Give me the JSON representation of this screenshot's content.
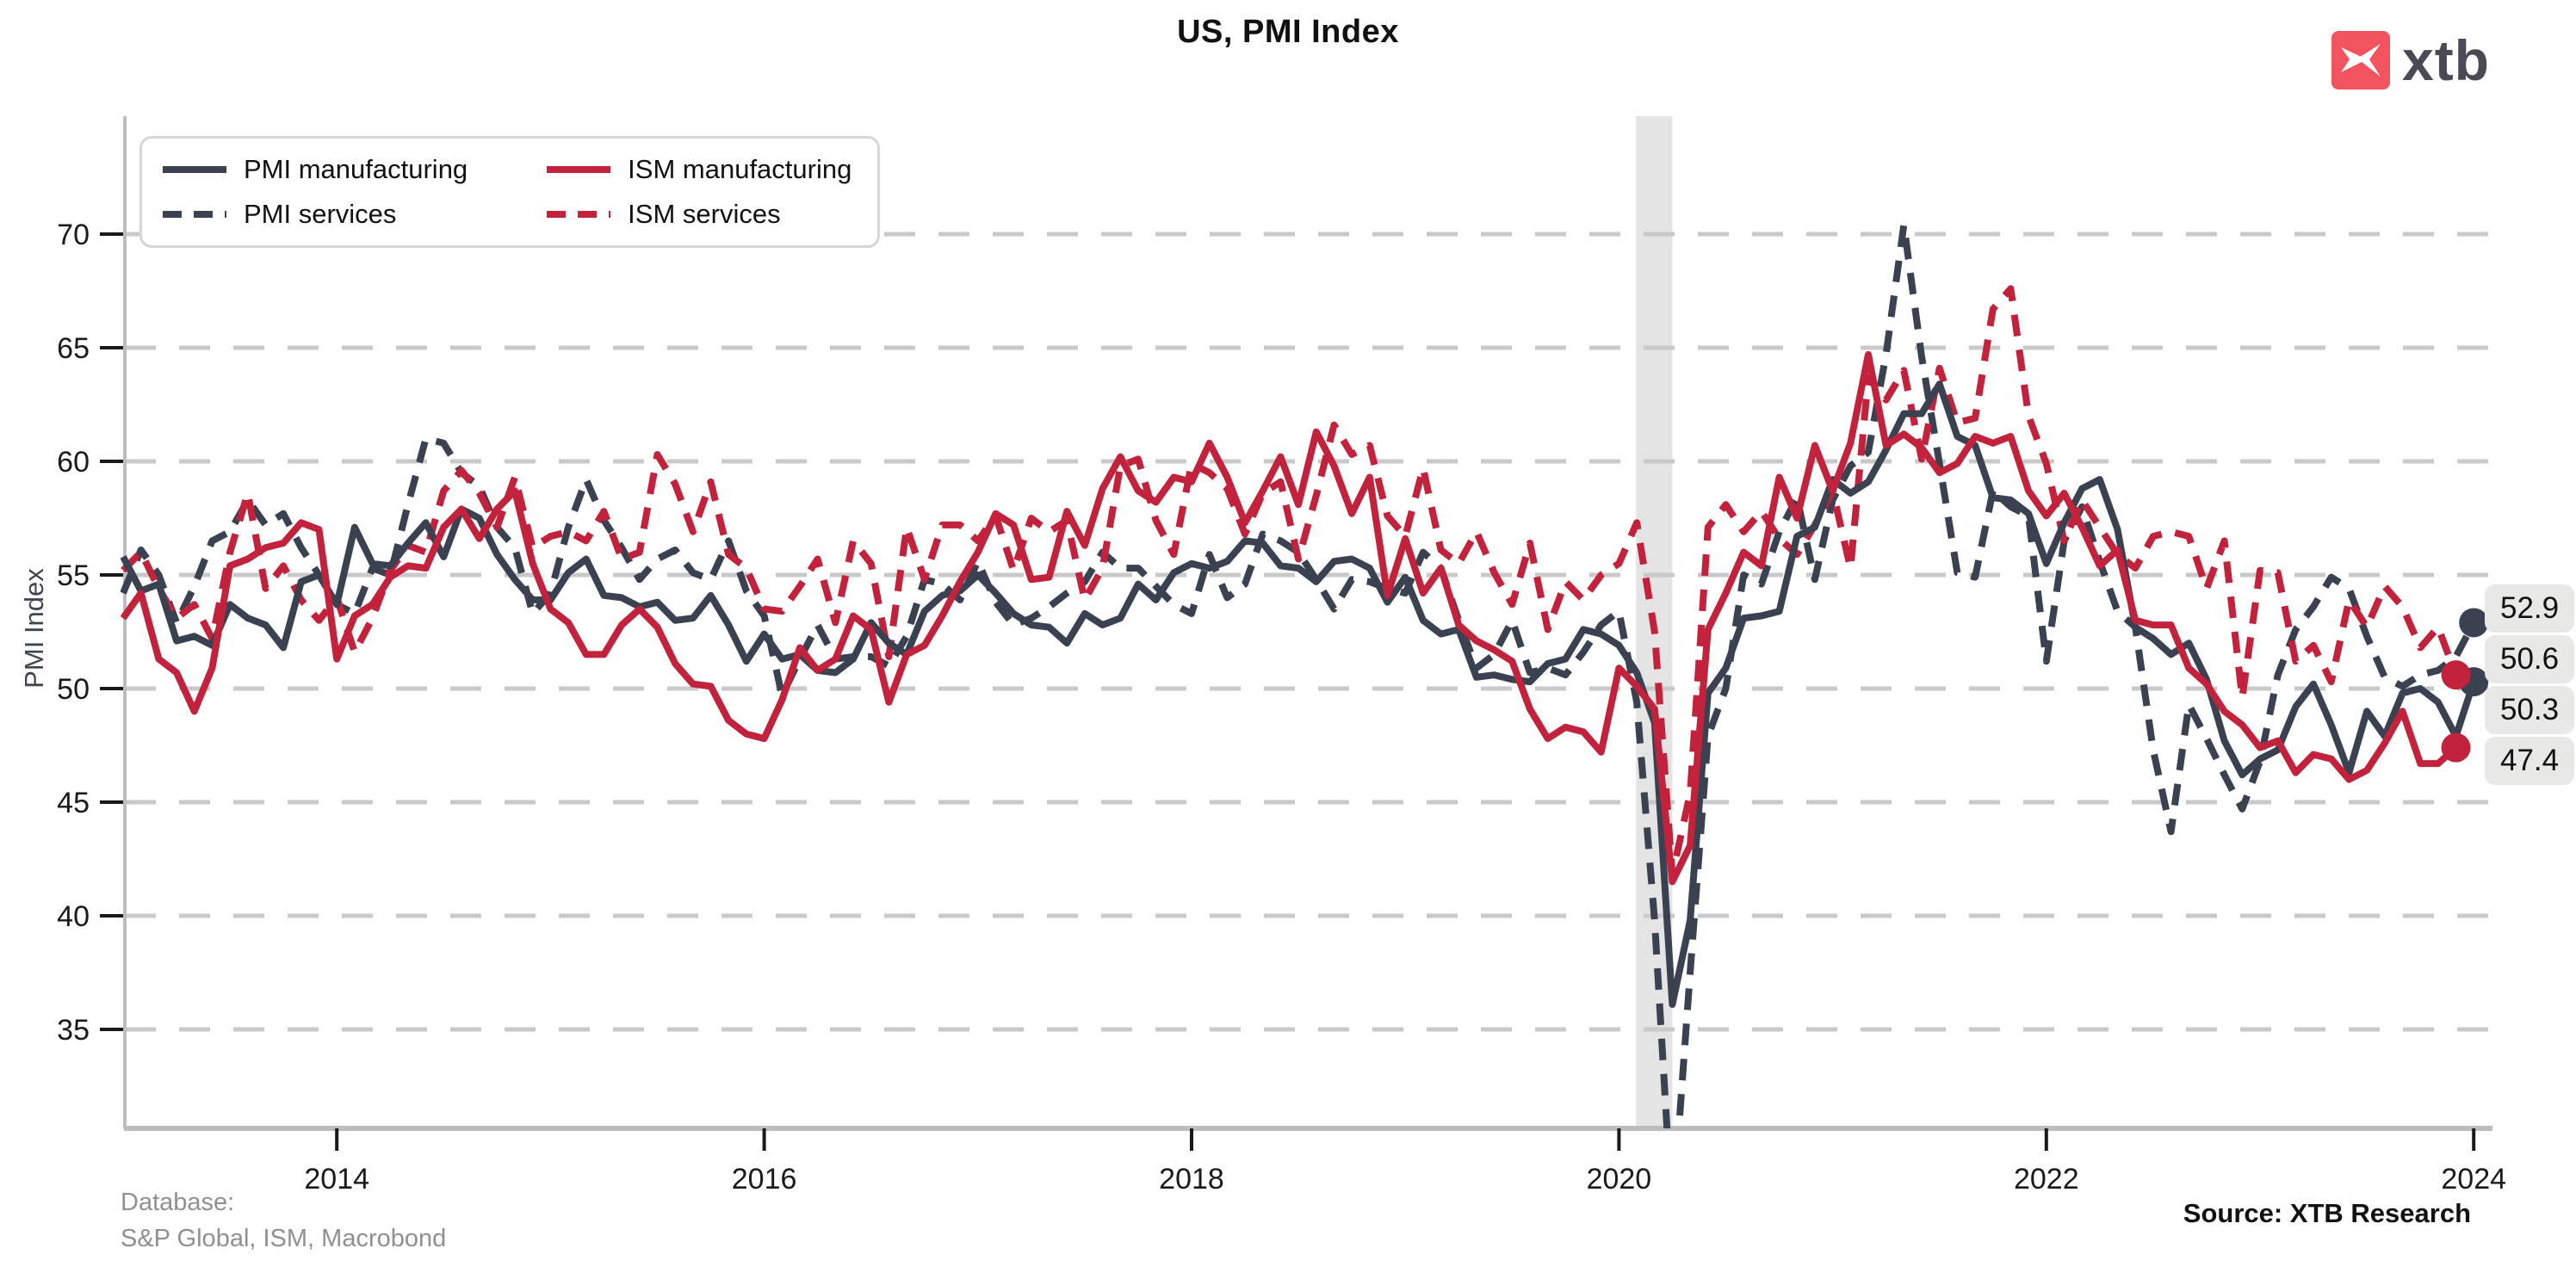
{
  "header": {
    "title": "US, PMI Index"
  },
  "logo": {
    "text": "xtb"
  },
  "axes": {
    "y_label": "PMI Index"
  },
  "footer": {
    "database_label": "Database:",
    "database_value": "S&P Global, ISM, Macrobond",
    "source": "Source: XTB Research"
  },
  "colors": {
    "dark": "#3a4150",
    "red": "#c2223c",
    "grid": "#c9c9c9",
    "band": "#e4e4e4",
    "spine": "#bdbdbd",
    "tick": "#1a1a1a",
    "label_box": "#e8e8e6",
    "muted_text": "#909090",
    "logo_square": "#f2545f",
    "logo_text": "#4a4a54"
  },
  "chart_data": {
    "type": "line",
    "title": "US, PMI Index",
    "xlabel": "",
    "ylabel": "PMI Index",
    "x_start_year": 2013,
    "points_per_year": 12,
    "x_ticks": [
      2014,
      2016,
      2018,
      2020,
      2022,
      2024
    ],
    "y_ticks": [
      70,
      65,
      60,
      55,
      50,
      45,
      40,
      35
    ],
    "xlim": [
      2013.0,
      2024.25
    ],
    "ylim": [
      30.6,
      75.2
    ],
    "grid": "horizontal-dashed",
    "legend_position": "top-left",
    "recession_band": {
      "from": 2020.08,
      "to": 2020.25
    },
    "end_labels": [
      "52.9",
      "50.6",
      "50.3",
      "47.4"
    ],
    "series": [
      {
        "name": "PMI manufacturing",
        "color": "dark",
        "dash": false,
        "start": "2013-01",
        "values": [
          55.8,
          54.3,
          54.6,
          52.1,
          52.3,
          51.9,
          53.7,
          53.1,
          52.8,
          51.8,
          54.7,
          55.0,
          53.7,
          57.1,
          55.5,
          55.4,
          56.4,
          57.3,
          55.8,
          57.9,
          57.5,
          55.9,
          54.8,
          53.9,
          53.9,
          55.1,
          55.7,
          54.1,
          54.0,
          53.6,
          53.8,
          53.0,
          53.1,
          54.1,
          52.8,
          51.2,
          52.4,
          51.3,
          51.5,
          50.8,
          50.7,
          51.3,
          52.9,
          52.0,
          51.5,
          53.4,
          54.1,
          54.3,
          55.0,
          54.2,
          53.3,
          52.8,
          52.7,
          52.0,
          53.3,
          52.8,
          53.1,
          54.6,
          53.9,
          55.1,
          55.5,
          55.3,
          55.6,
          56.5,
          56.4,
          55.4,
          55.3,
          54.7,
          55.6,
          55.7,
          55.3,
          53.8,
          54.9,
          53.0,
          52.4,
          52.6,
          50.5,
          50.6,
          50.4,
          50.3,
          51.1,
          51.3,
          52.6,
          52.4,
          51.9,
          50.7,
          48.5,
          36.1,
          39.8,
          49.8,
          50.9,
          53.1,
          53.2,
          53.4,
          56.7,
          57.1,
          59.2,
          58.6,
          59.1,
          60.5,
          62.1,
          62.1,
          63.4,
          61.1,
          60.7,
          58.4,
          58.3,
          57.7,
          55.5,
          57.3,
          58.8,
          59.2,
          57.0,
          52.7,
          52.2,
          51.5,
          52.0,
          50.4,
          47.7,
          46.2,
          46.9,
          47.3,
          49.2,
          50.2,
          48.4,
          46.3,
          49.0,
          47.9,
          49.8,
          50.0,
          49.4,
          47.9,
          50.3
        ]
      },
      {
        "name": "PMI services",
        "color": "dark",
        "dash": true,
        "start": "2013-01",
        "values": [
          54.2,
          56.1,
          55.0,
          52.9,
          54.5,
          56.5,
          56.9,
          58.3,
          57.2,
          57.7,
          56.2,
          55.0,
          53.7,
          53.3,
          55.3,
          55.0,
          58.1,
          61.0,
          60.8,
          59.5,
          58.9,
          57.1,
          56.2,
          53.3,
          54.2,
          57.1,
          59.2,
          57.4,
          56.2,
          54.8,
          55.7,
          56.1,
          55.1,
          54.8,
          56.5,
          54.3,
          53.2,
          49.7,
          51.3,
          52.8,
          51.3,
          51.4,
          51.4,
          51.0,
          52.3,
          54.8,
          54.6,
          53.9,
          55.6,
          53.8,
          52.8,
          53.1,
          53.6,
          54.2,
          54.7,
          56.0,
          55.3,
          55.3,
          54.5,
          53.7,
          53.3,
          55.9,
          54.0,
          54.6,
          56.8,
          56.5,
          56.0,
          54.8,
          53.5,
          54.8,
          54.7,
          54.4,
          54.2,
          56.0,
          55.3,
          53.0,
          50.9,
          51.5,
          53.0,
          50.7,
          50.9,
          50.6,
          51.6,
          52.8,
          53.4,
          49.4,
          39.8,
          26.7,
          37.5,
          47.9,
          50.0,
          55.0,
          54.6,
          56.9,
          58.4,
          54.8,
          58.3,
          59.8,
          60.4,
          64.7,
          70.4,
          64.6,
          59.9,
          55.1,
          54.9,
          58.7,
          58.0,
          57.6,
          51.2,
          56.5,
          58.0,
          55.6,
          53.4,
          52.7,
          47.3,
          43.7,
          49.3,
          47.8,
          46.2,
          44.7,
          46.8,
          50.6,
          52.6,
          53.6,
          54.9,
          54.4,
          52.3,
          50.5,
          50.1,
          50.6,
          50.8,
          51.4,
          52.9
        ]
      },
      {
        "name": "ISM manufacturing",
        "color": "red",
        "dash": false,
        "start": "2013-01",
        "values": [
          53.1,
          54.2,
          51.3,
          50.7,
          49.0,
          50.9,
          55.4,
          55.7,
          56.2,
          56.4,
          57.3,
          57.0,
          51.3,
          53.2,
          53.7,
          54.9,
          55.4,
          55.3,
          57.1,
          57.9,
          56.6,
          57.9,
          58.7,
          55.5,
          53.5,
          52.9,
          51.5,
          51.5,
          52.8,
          53.5,
          52.7,
          51.1,
          50.2,
          50.1,
          48.6,
          48.0,
          47.8,
          49.5,
          51.8,
          50.8,
          51.3,
          53.2,
          52.6,
          49.4,
          51.5,
          51.9,
          53.2,
          54.7,
          56.0,
          57.7,
          57.2,
          54.8,
          54.9,
          57.8,
          56.3,
          58.8,
          60.2,
          58.7,
          58.2,
          59.3,
          59.1,
          60.8,
          59.3,
          57.3,
          58.7,
          60.2,
          58.1,
          61.3,
          59.8,
          57.7,
          59.3,
          54.1,
          56.6,
          54.2,
          55.3,
          52.8,
          52.1,
          51.7,
          51.2,
          49.1,
          47.8,
          48.3,
          48.1,
          47.2,
          50.9,
          50.1,
          49.1,
          41.5,
          43.1,
          52.6,
          54.2,
          56.0,
          55.4,
          59.3,
          57.5,
          60.7,
          58.7,
          60.8,
          64.7,
          60.7,
          61.2,
          60.6,
          59.5,
          59.9,
          61.1,
          60.8,
          61.1,
          58.7,
          57.6,
          58.6,
          57.1,
          55.4,
          56.1,
          53.0,
          52.8,
          52.8,
          50.9,
          50.2,
          49.0,
          48.4,
          47.4,
          47.7,
          46.3,
          47.1,
          46.9,
          46.0,
          46.4,
          47.6,
          49.0,
          46.7,
          46.7,
          47.4
        ]
      },
      {
        "name": "ISM services",
        "color": "red",
        "dash": true,
        "start": "2013-01",
        "values": [
          55.2,
          56.0,
          54.4,
          53.1,
          53.7,
          52.2,
          56.0,
          58.6,
          54.4,
          55.4,
          53.9,
          53.0,
          54.0,
          51.6,
          53.1,
          55.2,
          56.3,
          56.0,
          58.7,
          59.6,
          58.6,
          57.1,
          59.3,
          56.2,
          56.7,
          56.9,
          56.5,
          57.8,
          55.7,
          56.0,
          60.3,
          59.0,
          56.9,
          59.1,
          55.9,
          55.3,
          53.5,
          53.4,
          54.5,
          55.7,
          52.9,
          56.5,
          55.5,
          51.4,
          57.1,
          54.8,
          57.2,
          57.2,
          56.5,
          57.6,
          55.2,
          57.5,
          56.9,
          57.4,
          53.9,
          55.3,
          59.8,
          60.1,
          57.4,
          55.9,
          59.9,
          59.5,
          58.8,
          56.8,
          58.6,
          59.1,
          55.7,
          58.5,
          61.6,
          60.3,
          60.7,
          57.6,
          56.7,
          59.7,
          56.1,
          55.5,
          56.9,
          55.1,
          53.7,
          56.4,
          52.6,
          54.7,
          53.9,
          55.0,
          55.5,
          57.3,
          52.5,
          41.8,
          45.4,
          57.1,
          58.1,
          56.9,
          57.8,
          56.6,
          55.9,
          57.2,
          58.7,
          55.3,
          63.7,
          62.7,
          64.0,
          60.1,
          64.1,
          61.7,
          61.9,
          66.7,
          67.6,
          62.0,
          59.9,
          56.5,
          58.3,
          57.1,
          55.9,
          55.3,
          56.7,
          56.9,
          56.7,
          54.4,
          56.5,
          49.6,
          55.2,
          55.1,
          51.2,
          51.9,
          50.3,
          53.9,
          52.7,
          54.5,
          53.6,
          51.8,
          52.7,
          50.6
        ]
      }
    ]
  }
}
